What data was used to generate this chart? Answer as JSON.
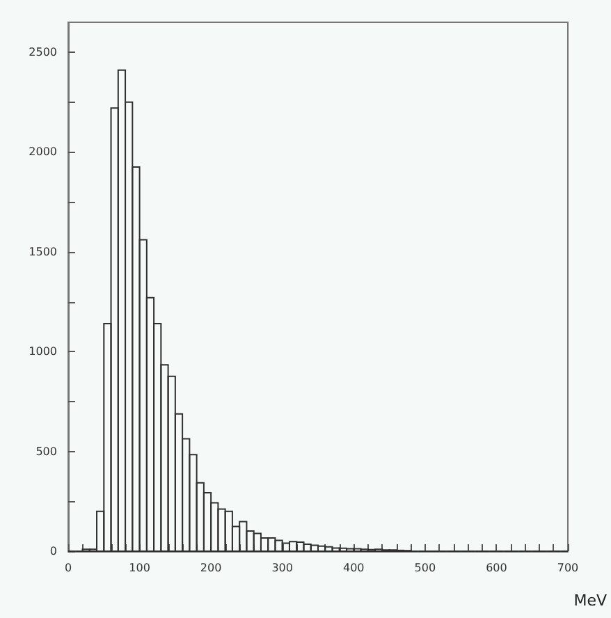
{
  "chart_data": {
    "type": "histogram",
    "xlabel": "MeV",
    "color": "#303030",
    "bins": [
      0,
      10,
      20,
      30,
      40,
      50,
      60,
      70,
      80,
      90,
      100,
      110,
      120,
      130,
      140,
      150,
      160,
      170,
      180,
      190,
      200,
      210,
      220,
      230,
      240,
      250,
      260,
      270,
      280,
      290,
      300,
      310,
      320,
      330,
      340,
      350,
      360,
      370,
      380,
      390,
      400,
      410,
      420,
      430,
      440,
      450,
      460,
      470,
      480,
      490,
      500,
      510,
      520,
      530,
      540,
      550,
      560,
      570,
      580,
      590,
      600,
      610,
      620,
      630,
      640,
      650,
      660,
      670,
      680,
      690,
      700
    ],
    "values": [
      0,
      0,
      10,
      10,
      200,
      1140,
      2220,
      2410,
      2250,
      1925,
      1560,
      1270,
      1140,
      934,
      876,
      688,
      563,
      484,
      343,
      293,
      242,
      211,
      200,
      124,
      148,
      101,
      89,
      66,
      66,
      54,
      40,
      48,
      45,
      35,
      30,
      25,
      22,
      16,
      15,
      12,
      12,
      10,
      8,
      10,
      6,
      6,
      4,
      3,
      0,
      0,
      0,
      0,
      0,
      0,
      0,
      0,
      0,
      0,
      0,
      0,
      0,
      0,
      0,
      0,
      0,
      0,
      0,
      0,
      0,
      0
    ],
    "xlim": [
      0,
      700
    ],
    "ylim": [
      0,
      2650
    ],
    "xticks": [
      0,
      {
        "value": 20,
        "label": null
      },
      {
        "value": 40,
        "label": null
      },
      {
        "value": 60,
        "label": null
      },
      {
        "value": 80,
        "label": null
      },
      100,
      {
        "value": 120,
        "label": null
      },
      {
        "value": 140,
        "label": null
      },
      {
        "value": 160,
        "label": null
      },
      {
        "value": 180,
        "label": null
      },
      200,
      {
        "value": 220,
        "label": null
      },
      {
        "value": 240,
        "label": null
      },
      {
        "value": 260,
        "label": null
      },
      {
        "value": 280,
        "label": null
      },
      300,
      {
        "value": 320,
        "label": null
      },
      {
        "value": 340,
        "label": null
      },
      {
        "value": 360,
        "label": null
      },
      {
        "value": 380,
        "label": null
      },
      400,
      {
        "value": 420,
        "label": null
      },
      {
        "value": 440,
        "label": null
      },
      {
        "value": 460,
        "label": null
      },
      {
        "value": 480,
        "label": null
      },
      500,
      {
        "value": 520,
        "label": null
      },
      {
        "value": 540,
        "label": null
      },
      {
        "value": 560,
        "label": null
      },
      {
        "value": 580,
        "label": null
      },
      600,
      {
        "value": 620,
        "label": null
      },
      {
        "value": 640,
        "label": null
      },
      {
        "value": 660,
        "label": null
      },
      {
        "value": 680,
        "label": null
      },
      700
    ],
    "yticks": [
      0,
      {
        "value": 250,
        "label": null
      },
      500,
      {
        "value": 750,
        "label": null
      },
      1000,
      {
        "value": 1250,
        "label": null
      },
      1500,
      {
        "value": 1750,
        "label": null
      },
      2000,
      {
        "value": 2250,
        "label": null
      },
      2500
    ],
    "grid": false
  }
}
